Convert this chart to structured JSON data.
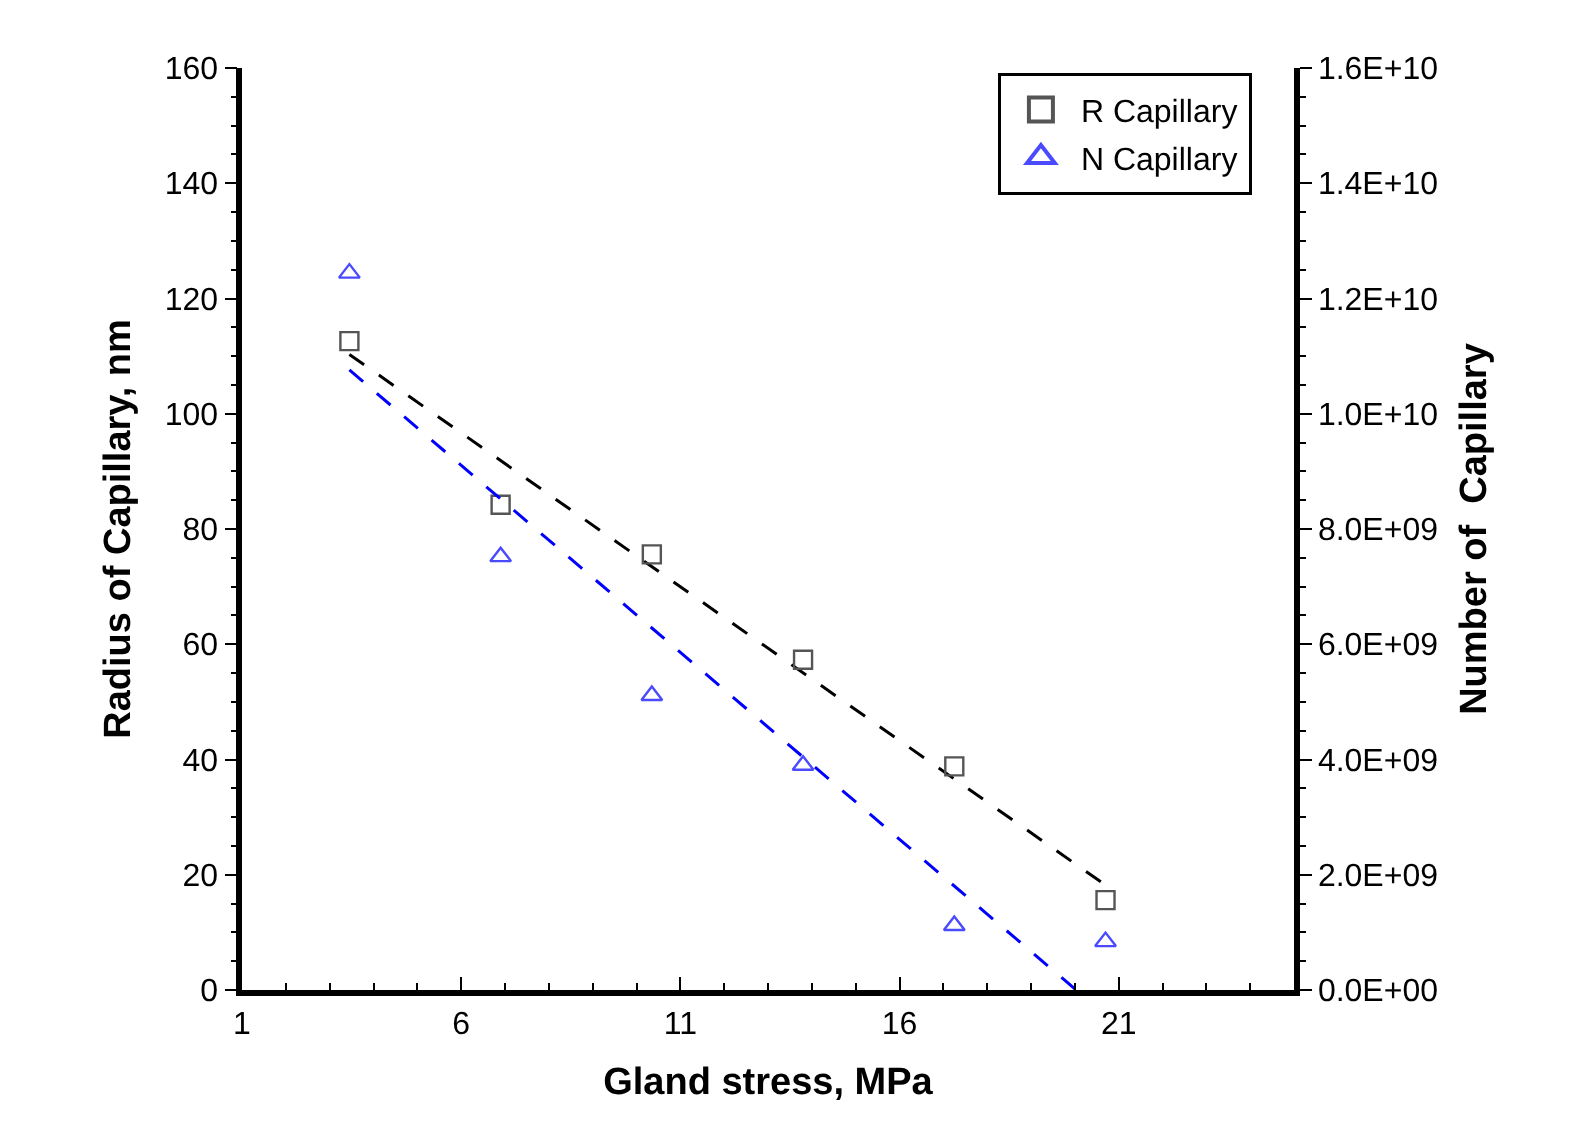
{
  "chart_data": {
    "type": "scatter",
    "xlabel": "Gland stress, MPa",
    "ylabel": "Radius of Capillary, nm",
    "y2label": "Number of  Capillary",
    "xlim": [
      1,
      25
    ],
    "xticks": [
      1,
      6,
      11,
      16,
      21
    ],
    "ylim": [
      0,
      160
    ],
    "yticks": [
      0,
      20,
      40,
      60,
      80,
      100,
      120,
      140,
      160
    ],
    "y2lim": [
      0,
      16000000000
    ],
    "y2ticks": [
      {
        "value": 0,
        "label": "0.0E+00"
      },
      {
        "value": 2000000000,
        "label": "2.0E+09"
      },
      {
        "value": 4000000000,
        "label": "4.0E+09"
      },
      {
        "value": 6000000000,
        "label": "6.0E+09"
      },
      {
        "value": 8000000000,
        "label": "8.0E+09"
      },
      {
        "value": 10000000000,
        "label": "1.0E+10"
      },
      {
        "value": 12000000000,
        "label": "1.2E+10"
      },
      {
        "value": 14000000000,
        "label": "1.4E+10"
      },
      {
        "value": 16000000000,
        "label": "1.6E+10"
      }
    ],
    "legend": "top right",
    "series": [
      {
        "name": "R Capillary",
        "marker": "square",
        "color": "#555555",
        "x": [
          3.45,
          6.9,
          10.35,
          13.8,
          17.25,
          20.7
        ],
        "values": [
          112.6,
          84.2,
          75.6,
          57.3,
          38.8,
          15.6
        ]
      },
      {
        "name": "N Capillary",
        "marker": "triangle",
        "color": "#4a4aff",
        "axis": "y2",
        "x": [
          3.45,
          6.9,
          10.35,
          13.8,
          17.25,
          20.7
        ],
        "values": [
          12440000000,
          7520000000,
          5110000000,
          3900000000,
          1120000000,
          840000000
        ]
      },
      {
        "type": "line",
        "line_style": "dashed",
        "color": "#000000",
        "x": [
          3.45,
          20.7
        ],
        "values": [
          110.3,
          18.2
        ]
      },
      {
        "type": "line",
        "line_style": "dashed",
        "color": "#0000ff",
        "axis": "y2",
        "x": [
          3.45,
          20.03
        ],
        "values": [
          10760000000,
          0
        ]
      }
    ]
  }
}
